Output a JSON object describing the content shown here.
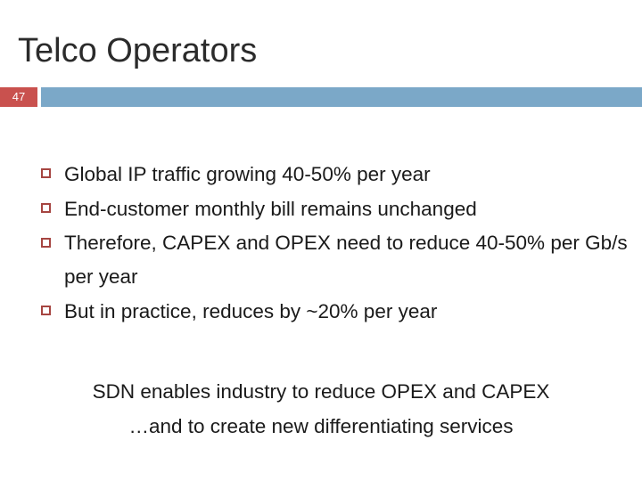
{
  "slide": {
    "title": "Telco Operators",
    "number": "47"
  },
  "bullets": [
    {
      "text": "Global IP traffic growing 40-50% per year"
    },
    {
      "text": "End-customer monthly bill remains unchanged"
    },
    {
      "text": "Therefore, CAPEX and OPEX need to reduce 40-50% per Gb/s per year"
    },
    {
      "text": "But in practice, reduces by ~20% per year"
    }
  ],
  "takeaway": {
    "line1": "SDN enables industry to reduce OPEX and CAPEX",
    "line2": "…and to create new differentiating services"
  },
  "colors": {
    "number_box": "#c9514e",
    "rule_bar": "#7ba8c8",
    "bullet_marker": "#a64541"
  }
}
